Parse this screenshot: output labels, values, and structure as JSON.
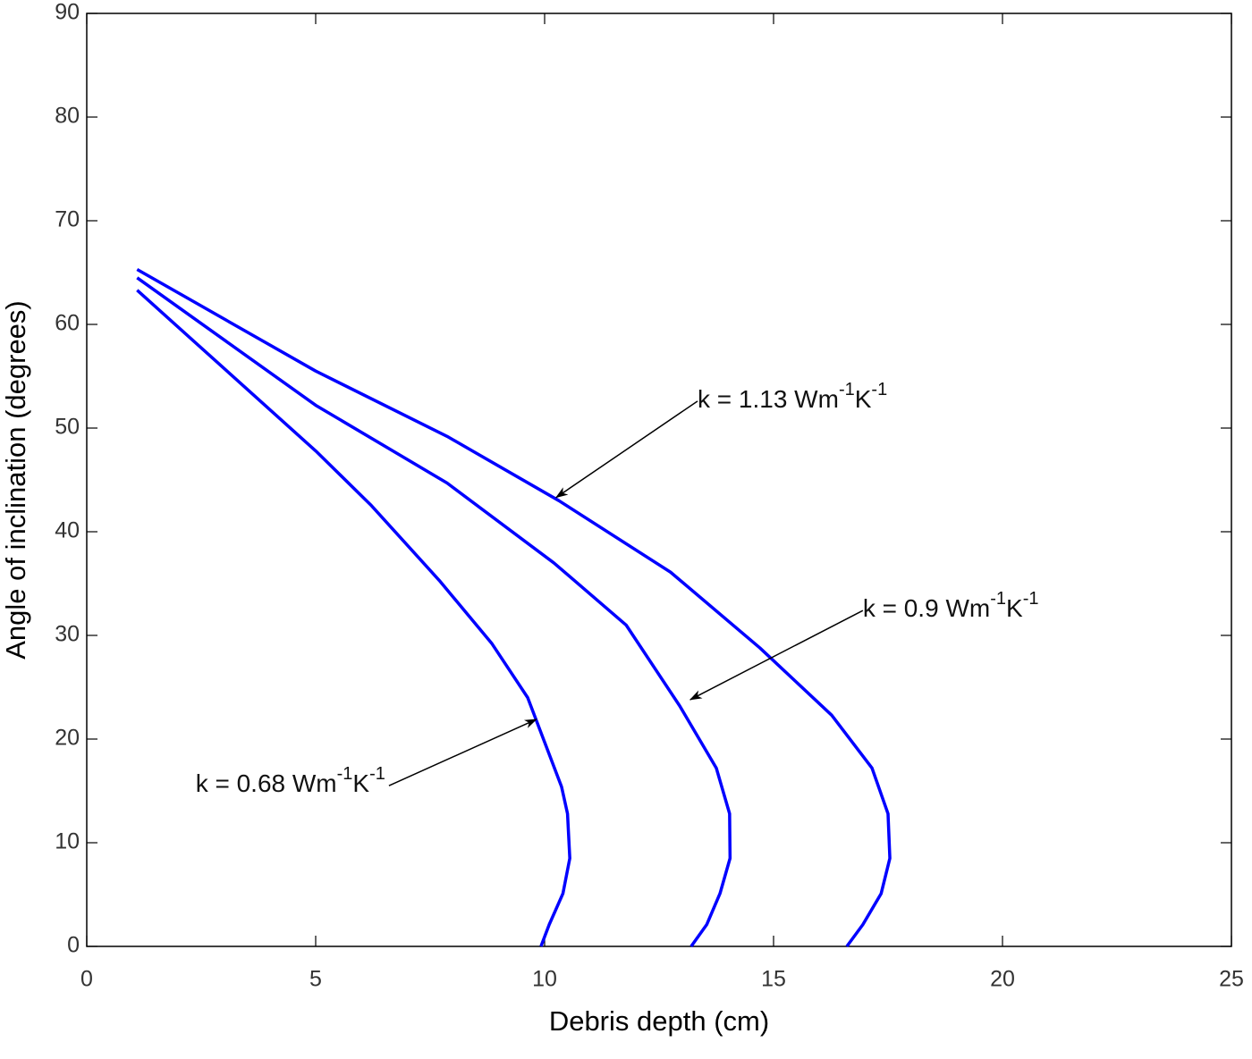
{
  "chart_data": {
    "type": "line",
    "xlabel": "Debris depth (cm)",
    "ylabel": "Angle of inclination (degrees)",
    "xlim": [
      0,
      25
    ],
    "xticks": [
      0,
      5,
      10,
      15,
      20,
      25
    ],
    "ylim": [
      0,
      90
    ],
    "yticks": [
      0,
      10,
      20,
      30,
      40,
      50,
      60,
      70,
      80,
      90
    ],
    "series": [
      {
        "color": "#0000ff",
        "x": [
          1.1,
          5,
          6.2,
          7.7,
          8.85,
          9.63,
          10.0,
          10.37,
          10.5,
          10.55,
          10.4,
          10.1,
          9.92
        ],
        "values": [
          63.3,
          47.8,
          42.6,
          35.3,
          29.2,
          24,
          19.7,
          15.4,
          12.8,
          8.5,
          5.1,
          2.1,
          0
        ]
      },
      {
        "color": "#0000ff",
        "x": [
          1.1,
          5,
          7.87,
          10.2,
          11.78,
          12.95,
          13.75,
          14.04,
          14.05,
          13.83,
          13.54,
          13.2
        ],
        "values": [
          64.5,
          52.2,
          44.7,
          37,
          31,
          23.2,
          17.2,
          12.8,
          8.5,
          5.1,
          2.1,
          0
        ]
      },
      {
        "color": "#0000ff",
        "x": [
          1.1,
          5,
          7.87,
          10.31,
          12.75,
          14.7,
          16.27,
          17.15,
          17.5,
          17.54,
          17.35,
          16.95,
          16.6
        ],
        "values": [
          65.3,
          55.5,
          49.2,
          43,
          36.1,
          28.8,
          22.3,
          17.2,
          12.8,
          8.5,
          5.1,
          2.1,
          0
        ]
      }
    ],
    "annotations": [
      {
        "text_parts": [
          {
            "text": "k = 1.13 Wm"
          },
          {
            "text": "-1",
            "sup": true
          },
          {
            "text": "K"
          },
          {
            "text": "-1",
            "sup": true
          }
        ],
        "xy": [
          10.25,
          43.3
        ],
        "xytext": [
          13.34,
          52.6
        ],
        "ha": "left"
      },
      {
        "text_parts": [
          {
            "text": "k = 0.9 Wm"
          },
          {
            "text": "-1",
            "sup": true
          },
          {
            "text": "K"
          },
          {
            "text": "-1",
            "sup": true
          }
        ],
        "xy": [
          13.18,
          23.8
        ],
        "xytext": [
          16.95,
          32.4
        ],
        "ha": "left"
      },
      {
        "text_parts": [
          {
            "text": "k = 0.68 Wm"
          },
          {
            "text": "-1",
            "sup": true
          },
          {
            "text": "K"
          },
          {
            "text": "-1",
            "sup": true
          }
        ],
        "xy": [
          9.82,
          21.9
        ],
        "xytext": [
          6.6,
          15.5
        ],
        "ha": "right"
      }
    ]
  }
}
